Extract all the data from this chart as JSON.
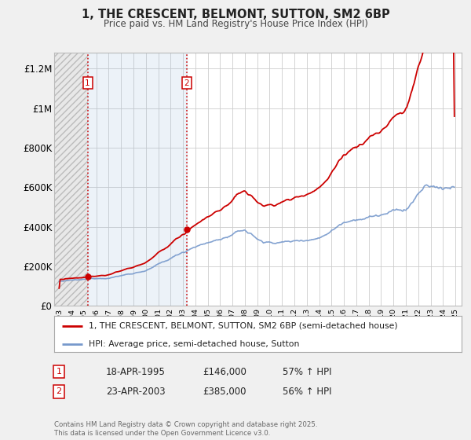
{
  "title": "1, THE CRESCENT, BELMONT, SUTTON, SM2 6BP",
  "subtitle": "Price paid vs. HM Land Registry's House Price Index (HPI)",
  "hpi_label": "HPI: Average price, semi-detached house, Sutton",
  "property_label": "1, THE CRESCENT, BELMONT, SUTTON, SM2 6BP (semi-detached house)",
  "footer": "Contains HM Land Registry data © Crown copyright and database right 2025.\nThis data is licensed under the Open Government Licence v3.0.",
  "sale1_date": "18-APR-1995",
  "sale1_price": "£146,000",
  "sale1_hpi": "57% ↑ HPI",
  "sale1_year": 1995.3,
  "sale1_value": 146000,
  "sale2_date": "23-APR-2003",
  "sale2_price": "£385,000",
  "sale2_hpi": "56% ↑ HPI",
  "sale2_year": 2003.3,
  "sale2_value": 385000,
  "red_color": "#cc0000",
  "blue_color": "#7799cc",
  "background_color": "#f0f0f0",
  "plot_background": "#ffffff",
  "grid_color": "#cccccc",
  "ylim_max": 1280000,
  "yticks": [
    0,
    200000,
    400000,
    600000,
    800000,
    1000000,
    1200000
  ],
  "ytick_labels": [
    "£0",
    "£200K",
    "£400K",
    "£600K",
    "£800K",
    "£1M",
    "£1.2M"
  ],
  "xmin": 1992.6,
  "xmax": 2025.5
}
